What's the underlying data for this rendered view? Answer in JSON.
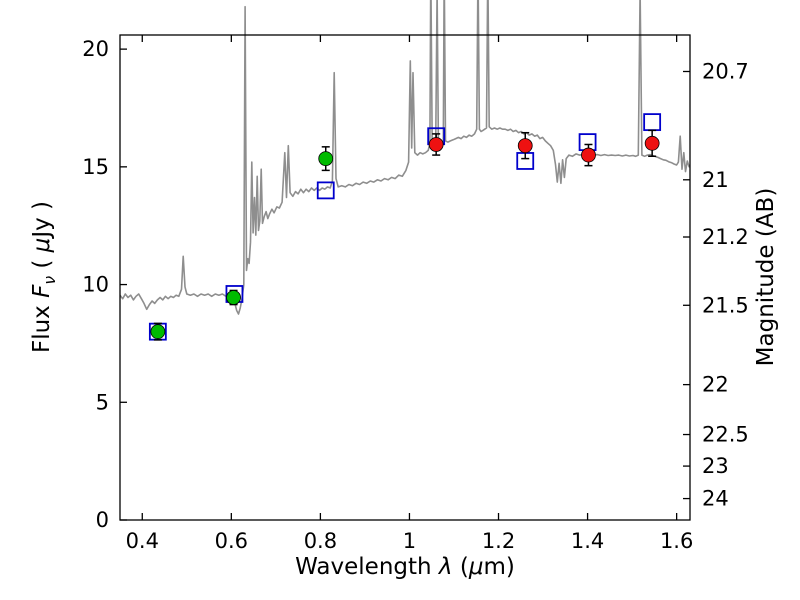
{
  "chart_data": {
    "type": "line",
    "title": "",
    "xlabel": {
      "p1": "Wavelength ",
      "p2": "λ",
      "p3": " (",
      "p4": "μ",
      "p5": "m)"
    },
    "ylabel": {
      "p1": "Flux ",
      "p2": "F",
      "p3": "ν",
      "p4": " ( ",
      "p5": "μ",
      "p6": "Jy )"
    },
    "y2label": {
      "p1": "Magnitude (AB)"
    },
    "x_range": [
      0.35,
      1.63
    ],
    "y_range": [
      0,
      20.6
    ],
    "grid": false,
    "legend": "none",
    "x_ticks": [
      {
        "v": 0.4,
        "label": "0.4"
      },
      {
        "v": 0.6,
        "label": "0.6"
      },
      {
        "v": 0.8,
        "label": "0.8"
      },
      {
        "v": 1.0,
        "label": "1"
      },
      {
        "v": 1.2,
        "label": "1.2"
      },
      {
        "v": 1.4,
        "label": "1.4"
      },
      {
        "v": 1.6,
        "label": "1.6"
      }
    ],
    "y_ticks": [
      {
        "v": 0,
        "label": "0"
      },
      {
        "v": 5,
        "label": "5"
      },
      {
        "v": 10,
        "label": "10"
      },
      {
        "v": 15,
        "label": "15"
      },
      {
        "v": 20,
        "label": "20"
      }
    ],
    "y2_ticks": [
      {
        "label": "20.7",
        "flux": 19.05
      },
      {
        "label": "21",
        "flux": 14.45
      },
      {
        "label": "21.2",
        "flux": 12.02
      },
      {
        "label": "21.5",
        "flux": 9.12
      },
      {
        "label": "22",
        "flux": 5.75
      },
      {
        "label": "22.5",
        "flux": 3.63
      },
      {
        "label": "23",
        "flux": 2.29
      },
      {
        "label": "24",
        "flux": 0.91
      }
    ],
    "spectrum": {
      "name": "model-spectrum",
      "color": "#8e8e8e",
      "points": [
        [
          0.35,
          9.55
        ],
        [
          0.356,
          9.4
        ],
        [
          0.362,
          9.6
        ],
        [
          0.368,
          9.45
        ],
        [
          0.374,
          9.55
        ],
        [
          0.38,
          9.35
        ],
        [
          0.386,
          9.5
        ],
        [
          0.392,
          9.6
        ],
        [
          0.398,
          9.4
        ],
        [
          0.404,
          9.2
        ],
        [
          0.41,
          8.95
        ],
        [
          0.416,
          9.15
        ],
        [
          0.422,
          9.3
        ],
        [
          0.428,
          9.2
        ],
        [
          0.434,
          9.35
        ],
        [
          0.44,
          9.45
        ],
        [
          0.446,
          9.35
        ],
        [
          0.452,
          9.5
        ],
        [
          0.458,
          9.4
        ],
        [
          0.464,
          9.5
        ],
        [
          0.47,
          9.45
        ],
        [
          0.476,
          9.55
        ],
        [
          0.482,
          9.5
        ],
        [
          0.488,
          9.8
        ],
        [
          0.492,
          11.2
        ],
        [
          0.496,
          9.9
        ],
        [
          0.5,
          9.6
        ],
        [
          0.508,
          9.55
        ],
        [
          0.516,
          9.6
        ],
        [
          0.524,
          9.5
        ],
        [
          0.532,
          9.6
        ],
        [
          0.54,
          9.55
        ],
        [
          0.548,
          9.6
        ],
        [
          0.556,
          9.5
        ],
        [
          0.564,
          9.6
        ],
        [
          0.572,
          9.55
        ],
        [
          0.58,
          9.6
        ],
        [
          0.588,
          9.5
        ],
        [
          0.596,
          9.45
        ],
        [
          0.602,
          9.4
        ],
        [
          0.608,
          9.2
        ],
        [
          0.612,
          8.9
        ],
        [
          0.616,
          8.75
        ],
        [
          0.62,
          9.0
        ],
        [
          0.624,
          9.4
        ],
        [
          0.628,
          10.0
        ],
        [
          0.631,
          21.8
        ],
        [
          0.634,
          10.6
        ],
        [
          0.637,
          11.1
        ],
        [
          0.64,
          10.9
        ],
        [
          0.643,
          11.8
        ],
        [
          0.646,
          15.2
        ],
        [
          0.649,
          12.2
        ],
        [
          0.652,
          13.7
        ],
        [
          0.655,
          12.1
        ],
        [
          0.658,
          14.6
        ],
        [
          0.661,
          12.3
        ],
        [
          0.664,
          12.7
        ],
        [
          0.667,
          14.9
        ],
        [
          0.67,
          12.6
        ],
        [
          0.674,
          12.9
        ],
        [
          0.678,
          13.1
        ],
        [
          0.682,
          12.8
        ],
        [
          0.686,
          13.0
        ],
        [
          0.691,
          13.2
        ],
        [
          0.696,
          13.05
        ],
        [
          0.702,
          13.3
        ],
        [
          0.708,
          13.25
        ],
        [
          0.714,
          13.5
        ],
        [
          0.72,
          15.6
        ],
        [
          0.724,
          13.7
        ],
        [
          0.728,
          15.9
        ],
        [
          0.732,
          13.9
        ],
        [
          0.738,
          13.75
        ],
        [
          0.744,
          13.95
        ],
        [
          0.75,
          13.85
        ],
        [
          0.756,
          14.05
        ],
        [
          0.762,
          13.9
        ],
        [
          0.768,
          14.05
        ],
        [
          0.774,
          13.95
        ],
        [
          0.78,
          14.1
        ],
        [
          0.786,
          14.0
        ],
        [
          0.792,
          14.1
        ],
        [
          0.798,
          14.0
        ],
        [
          0.804,
          14.1
        ],
        [
          0.81,
          14.05
        ],
        [
          0.816,
          14.15
        ],
        [
          0.822,
          14.1
        ],
        [
          0.827,
          14.4
        ],
        [
          0.831,
          19.0
        ],
        [
          0.835,
          14.5
        ],
        [
          0.84,
          14.15
        ],
        [
          0.848,
          14.2
        ],
        [
          0.856,
          14.15
        ],
        [
          0.864,
          14.25
        ],
        [
          0.872,
          14.2
        ],
        [
          0.88,
          14.3
        ],
        [
          0.888,
          14.25
        ],
        [
          0.896,
          14.35
        ],
        [
          0.904,
          14.3
        ],
        [
          0.912,
          14.4
        ],
        [
          0.92,
          14.35
        ],
        [
          0.928,
          14.45
        ],
        [
          0.936,
          14.4
        ],
        [
          0.944,
          14.5
        ],
        [
          0.952,
          14.45
        ],
        [
          0.96,
          14.55
        ],
        [
          0.968,
          14.5
        ],
        [
          0.976,
          14.65
        ],
        [
          0.984,
          14.6
        ],
        [
          0.992,
          14.85
        ],
        [
          0.998,
          15.2
        ],
        [
          1.002,
          19.5
        ],
        [
          1.005,
          15.8
        ],
        [
          1.008,
          19.0
        ],
        [
          1.012,
          15.6
        ],
        [
          1.018,
          15.5
        ],
        [
          1.024,
          15.6
        ],
        [
          1.03,
          15.55
        ],
        [
          1.036,
          15.6
        ],
        [
          1.042,
          15.7
        ],
        [
          1.046,
          16.0
        ],
        [
          1.048,
          23.5
        ],
        [
          1.051,
          15.9
        ],
        [
          1.055,
          15.8
        ],
        [
          1.059,
          15.95
        ],
        [
          1.062,
          22.5
        ],
        [
          1.065,
          15.9
        ],
        [
          1.069,
          15.85
        ],
        [
          1.073,
          15.95
        ],
        [
          1.076,
          16.05
        ],
        [
          1.078,
          23.5
        ],
        [
          1.081,
          16.1
        ],
        [
          1.086,
          16.05
        ],
        [
          1.092,
          16.1
        ],
        [
          1.098,
          16.15
        ],
        [
          1.104,
          16.2
        ],
        [
          1.11,
          16.25
        ],
        [
          1.116,
          16.2
        ],
        [
          1.122,
          16.3
        ],
        [
          1.128,
          16.25
        ],
        [
          1.134,
          16.35
        ],
        [
          1.14,
          16.3
        ],
        [
          1.146,
          16.4
        ],
        [
          1.151,
          16.6
        ],
        [
          1.154,
          23.5
        ],
        [
          1.157,
          16.6
        ],
        [
          1.161,
          16.5
        ],
        [
          1.165,
          16.55
        ],
        [
          1.169,
          16.6
        ],
        [
          1.173,
          16.65
        ],
        [
          1.176,
          23.5
        ],
        [
          1.179,
          16.7
        ],
        [
          1.185,
          16.6
        ],
        [
          1.191,
          16.65
        ],
        [
          1.197,
          16.6
        ],
        [
          1.203,
          16.65
        ],
        [
          1.209,
          16.6
        ],
        [
          1.215,
          16.6
        ],
        [
          1.221,
          16.55
        ],
        [
          1.227,
          16.6
        ],
        [
          1.233,
          16.5
        ],
        [
          1.239,
          16.55
        ],
        [
          1.245,
          16.45
        ],
        [
          1.251,
          16.5
        ],
        [
          1.257,
          16.4
        ],
        [
          1.263,
          16.45
        ],
        [
          1.269,
          16.35
        ],
        [
          1.275,
          16.4
        ],
        [
          1.281,
          16.3
        ],
        [
          1.287,
          16.35
        ],
        [
          1.293,
          16.2
        ],
        [
          1.299,
          16.25
        ],
        [
          1.305,
          16.1
        ],
        [
          1.311,
          16.0
        ],
        [
          1.317,
          15.9
        ],
        [
          1.323,
          15.7
        ],
        [
          1.328,
          15.1
        ],
        [
          1.332,
          14.35
        ],
        [
          1.336,
          15.15
        ],
        [
          1.34,
          14.3
        ],
        [
          1.344,
          15.3
        ],
        [
          1.348,
          14.55
        ],
        [
          1.352,
          15.35
        ],
        [
          1.358,
          15.5
        ],
        [
          1.366,
          15.45
        ],
        [
          1.374,
          15.55
        ],
        [
          1.382,
          15.5
        ],
        [
          1.39,
          15.52
        ],
        [
          1.398,
          15.5
        ],
        [
          1.406,
          15.54
        ],
        [
          1.414,
          15.5
        ],
        [
          1.422,
          15.52
        ],
        [
          1.43,
          15.48
        ],
        [
          1.438,
          15.52
        ],
        [
          1.446,
          15.48
        ],
        [
          1.454,
          15.5
        ],
        [
          1.462,
          15.48
        ],
        [
          1.47,
          15.5
        ],
        [
          1.478,
          15.46
        ],
        [
          1.486,
          15.5
        ],
        [
          1.494,
          15.46
        ],
        [
          1.502,
          15.48
        ],
        [
          1.508,
          15.45
        ],
        [
          1.514,
          15.5
        ],
        [
          1.518,
          22.5
        ],
        [
          1.522,
          15.5
        ],
        [
          1.528,
          15.45
        ],
        [
          1.534,
          15.5
        ],
        [
          1.54,
          15.52
        ],
        [
          1.546,
          15.48
        ],
        [
          1.552,
          15.44
        ],
        [
          1.558,
          15.4
        ],
        [
          1.564,
          15.35
        ],
        [
          1.57,
          15.3
        ],
        [
          1.576,
          15.28
        ],
        [
          1.582,
          15.22
        ],
        [
          1.588,
          15.18
        ],
        [
          1.594,
          15.12
        ],
        [
          1.6,
          15.08
        ],
        [
          1.604,
          15.2
        ],
        [
          1.608,
          16.3
        ],
        [
          1.612,
          14.9
        ],
        [
          1.616,
          15.6
        ],
        [
          1.62,
          14.8
        ],
        [
          1.624,
          15.25
        ],
        [
          1.628,
          15.0
        ],
        [
          1.631,
          15.1
        ]
      ]
    },
    "model_photometry": {
      "name": "model-photometry-squares",
      "marker": "open-square",
      "color": "#0000cc",
      "points": [
        [
          0.435,
          8.0
        ],
        [
          0.607,
          9.6
        ],
        [
          0.812,
          14.0
        ],
        [
          1.06,
          16.3
        ],
        [
          1.26,
          15.25
        ],
        [
          1.4,
          16.05
        ],
        [
          1.545,
          16.9
        ]
      ]
    },
    "observed_green": {
      "name": "observed-photometry-optical",
      "marker": "circle",
      "color": "#00bb00",
      "points": [
        {
          "x": 0.435,
          "y": 8.0,
          "err": 0.35
        },
        {
          "x": 0.605,
          "y": 9.45,
          "err": 0.3
        },
        {
          "x": 0.812,
          "y": 15.35,
          "err": 0.5
        }
      ]
    },
    "observed_red": {
      "name": "observed-photometry-infrared",
      "marker": "circle",
      "color": "#ee1111",
      "points": [
        {
          "x": 1.06,
          "y": 15.95,
          "err": 0.45
        },
        {
          "x": 1.26,
          "y": 15.9,
          "err": 0.55
        },
        {
          "x": 1.402,
          "y": 15.5,
          "err": 0.45
        },
        {
          "x": 1.545,
          "y": 16.0,
          "err": 0.55
        }
      ]
    },
    "errorbar_color": "#000000",
    "frame_color": "#000000"
  }
}
